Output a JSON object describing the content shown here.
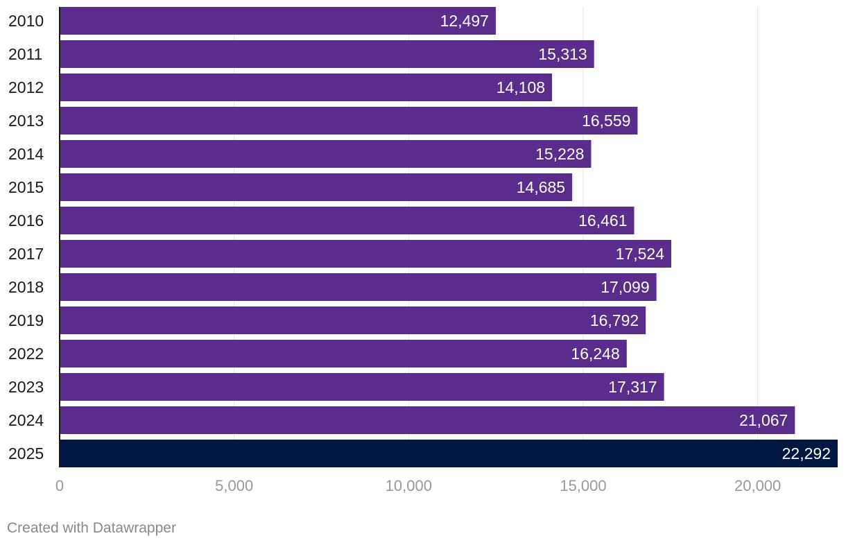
{
  "chart_data": {
    "type": "bar",
    "orientation": "horizontal",
    "categories": [
      "2010",
      "2011",
      "2012",
      "2013",
      "2014",
      "2015",
      "2016",
      "2017",
      "2018",
      "2019",
      "2022",
      "2023",
      "2024",
      "2025"
    ],
    "values": [
      12497,
      15313,
      14108,
      16559,
      15228,
      14685,
      16461,
      17524,
      17099,
      16792,
      16248,
      17317,
      21067,
      22292
    ],
    "value_labels": [
      "12,497",
      "15,313",
      "14,108",
      "16,559",
      "15,228",
      "14,685",
      "16,461",
      "17,524",
      "17,099",
      "16,792",
      "16,248",
      "17,317",
      "21,067",
      "22,292"
    ],
    "xticks": [
      0,
      5000,
      10000,
      15000,
      20000
    ],
    "xtick_labels": [
      "0",
      "5,000",
      "10,000",
      "15,000",
      "20,000"
    ],
    "xlim": [
      0,
      22292
    ],
    "title": "",
    "xlabel": "",
    "ylabel": "",
    "grid": true,
    "highlight_index": 13
  },
  "colors": {
    "bar": "#5a2d8c",
    "highlight": "#001741",
    "grid": "#e3e3e3",
    "axis": "#1a1a1a"
  },
  "footer": {
    "credit": "Created with Datawrapper"
  }
}
